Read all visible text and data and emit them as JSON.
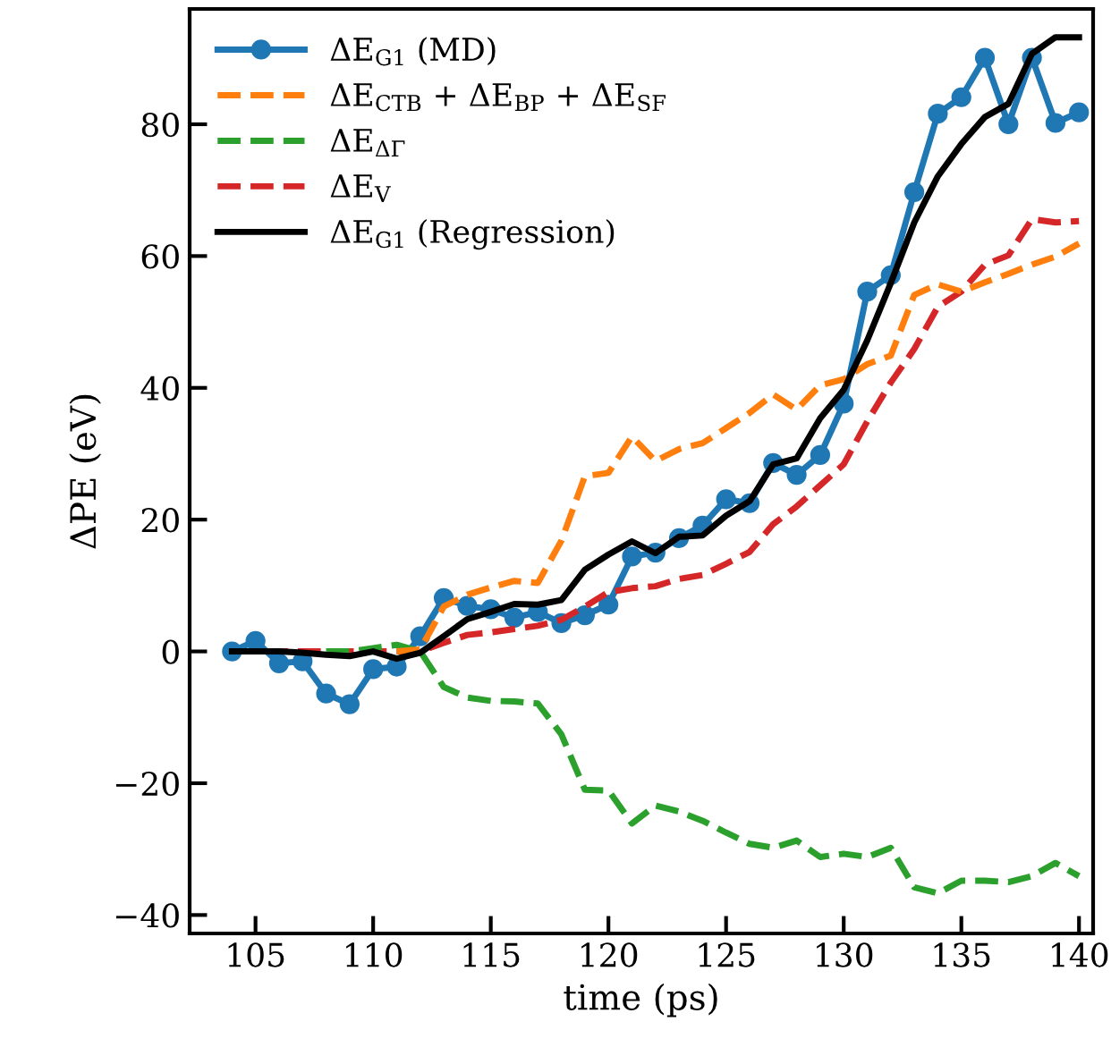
{
  "chart_data": {
    "type": "line",
    "xlabel": "time (ps)",
    "ylabel": "ΔPE (eV)",
    "x": [
      104,
      105,
      106,
      107,
      108,
      109,
      110,
      111,
      112,
      113,
      114,
      115,
      116,
      117,
      118,
      119,
      120,
      121,
      122,
      123,
      124,
      125,
      126,
      127,
      128,
      129,
      130,
      131,
      132,
      133,
      134,
      135,
      136,
      137,
      138,
      139,
      140
    ],
    "series": [
      {
        "name": "ΔE$_{G1}$ (MD)",
        "color": "#1f77b4",
        "marker": "circle",
        "line_style": "solid",
        "values": [
          0,
          1.6,
          -1.8,
          -1.5,
          -6.4,
          -8.0,
          -2.7,
          -2.3,
          2.3,
          8.1,
          6.9,
          6.4,
          5.1,
          6.0,
          4.3,
          5.5,
          7.1,
          14.4,
          15.0,
          17.2,
          19.1,
          23.1,
          22.5,
          28.6,
          26.8,
          29.8,
          37.6,
          54.6,
          57.1,
          69.7,
          81.6,
          84.1,
          90.1,
          80.0,
          90.1,
          80.2,
          81.8
        ]
      },
      {
        "name": "ΔE$_{CTB}$ + ΔE$_{BP}$ + ΔE$_{SF}$",
        "color": "#ff7f0e",
        "marker": "none",
        "line_style": "dashed",
        "values": [
          null,
          null,
          null,
          null,
          null,
          null,
          null,
          0,
          0.3,
          6.8,
          8.6,
          9.7,
          10.7,
          10.4,
          16.8,
          26.6,
          27.1,
          32.6,
          28.9,
          30.7,
          31.6,
          33.9,
          36.2,
          39.0,
          36.7,
          40.4,
          41.3,
          43.6,
          44.9,
          54.1,
          55.7,
          54.6,
          56.0,
          57.3,
          58.7,
          59.9,
          61.9
        ]
      },
      {
        "name": "ΔE$_{ΔΓ}$",
        "color": "#2ca02c",
        "marker": "none",
        "line_style": "dashed",
        "values": [
          null,
          null,
          null,
          null,
          0,
          0,
          0.5,
          1.0,
          0,
          -5.4,
          -7.0,
          -7.5,
          -7.6,
          -7.9,
          -12.6,
          -21.0,
          -21.1,
          -26.1,
          -23.4,
          -24.3,
          -25.7,
          -27.5,
          -29.2,
          -29.8,
          -28.7,
          -31.2,
          -30.7,
          -31.2,
          -29.8,
          -35.8,
          -36.7,
          -34.8,
          -34.8,
          -35.0,
          -34.1,
          -32.1,
          -34.1
        ]
      },
      {
        "name": "ΔE$_{V}$",
        "color": "#d62728",
        "marker": "none",
        "line_style": "dashed",
        "values": [
          0,
          0,
          0,
          0,
          0,
          0,
          0,
          0,
          0,
          1.3,
          2.5,
          2.9,
          3.4,
          3.9,
          4.8,
          6.8,
          9.0,
          9.6,
          9.9,
          11.0,
          11.6,
          13.3,
          15.1,
          19.3,
          22.0,
          25.2,
          28.4,
          34.9,
          40.8,
          45.9,
          52.3,
          54.6,
          58.7,
          60.1,
          65.6,
          65.1,
          65.3
        ]
      },
      {
        "name": "ΔE$_{G1}$ (Regression)",
        "color": "#000000",
        "marker": "none",
        "line_style": "solid",
        "values": [
          0,
          0,
          0,
          -0.2,
          -0.5,
          -0.7,
          0,
          -1.1,
          -0.2,
          2.3,
          4.9,
          6.0,
          7.2,
          7.1,
          7.8,
          12.4,
          14.7,
          16.7,
          14.9,
          17.4,
          17.6,
          20.6,
          22.8,
          28.4,
          29.3,
          35.4,
          39.7,
          47.2,
          55.9,
          65.1,
          72.1,
          77.0,
          81.1,
          83.1,
          90.7,
          93.2,
          93.2
        ]
      }
    ],
    "xlim": [
      102.2,
      140.6
    ],
    "ylim": [
      -42.8,
      97.5
    ],
    "xticks": [
      105,
      110,
      115,
      120,
      125,
      130,
      135,
      140
    ],
    "yticks": [
      -40,
      -20,
      0,
      20,
      40,
      60,
      80
    ],
    "grid": false,
    "legend": "top left"
  }
}
